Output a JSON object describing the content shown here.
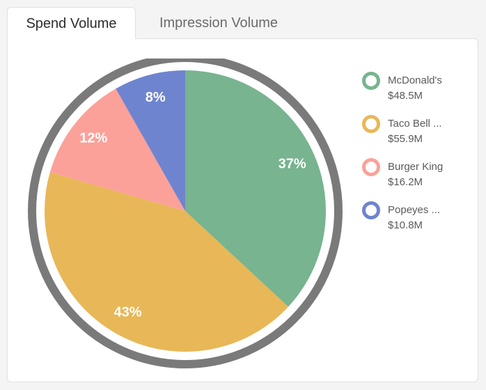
{
  "tabs": [
    {
      "label": "Spend Volume",
      "active": true
    },
    {
      "label": "Impression Volume",
      "active": false
    }
  ],
  "chart_data": {
    "type": "pie",
    "categories": [
      "McDonald's",
      "Taco Bell ...",
      "Burger King",
      "Popeyes ..."
    ],
    "values": [
      48.5,
      55.9,
      16.2,
      10.8
    ],
    "percent_labels": [
      "37%",
      "43%",
      "12%",
      "8%"
    ],
    "value_labels": [
      "$48.5M",
      "$55.9M",
      "$16.2M",
      "$10.8M"
    ],
    "colors": [
      "#77b48f",
      "#e8b757",
      "#fba199",
      "#6f84cf"
    ],
    "ring_color": "#7a7a7a",
    "legend_position": "right"
  }
}
